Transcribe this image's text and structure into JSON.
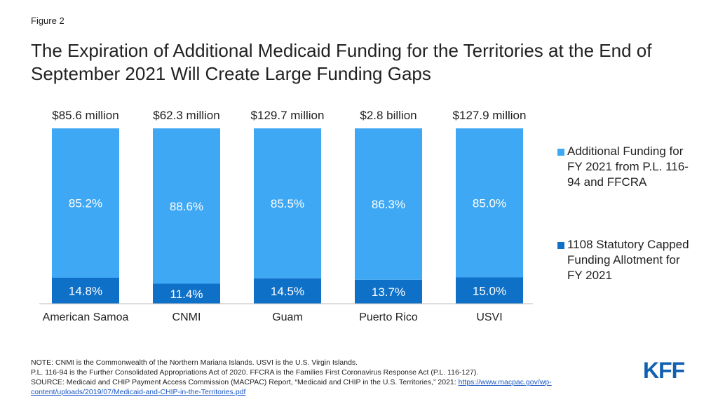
{
  "figure_label": "Figure 2",
  "chart_data": {
    "type": "stacked_bar_100",
    "title": "The Expiration of Additional Medicaid Funding for the Territories at the End of September 2021 Will Create Large Funding Gaps",
    "categories": [
      "American Samoa",
      "CNMI",
      "Guam",
      "Puerto Rico",
      "USVI"
    ],
    "total_labels": [
      "$85.6 million",
      "$62.3 million",
      "$129.7 million",
      "$2.8 billion",
      "$127.9 million"
    ],
    "series": [
      {
        "name": "Additional Funding for FY 2021 from P.L. 116-94 and FFCRA",
        "color": "#3fa8f4",
        "values": [
          85.2,
          88.6,
          85.5,
          86.3,
          85.0
        ],
        "value_labels": [
          "85.2%",
          "88.6%",
          "85.5%",
          "86.3%",
          "85.0%"
        ]
      },
      {
        "name": "1108 Statutory Capped Funding Allotment for FY 2021",
        "color": "#0f70c8",
        "values": [
          14.8,
          11.4,
          14.5,
          13.7,
          15.0
        ],
        "value_labels": [
          "14.8%",
          "11.4%",
          "14.5%",
          "13.7%",
          "15.0%"
        ]
      }
    ]
  },
  "notes": [
    "NOTE: CNMI is the Commonwealth of the Northern Mariana Islands. USVI is the U.S. Virgin Islands.",
    "P.L. 116-94 is the Further Consolidated Appropriations Act of 2020. FFCRA is the Families First Coronavirus Response Act (P.L. 116-127)."
  ],
  "source": "SOURCE: Medicaid and CHIP Payment Access Commission (MACPAC) Report, “Medicaid and CHIP in the U.S. Territories,” 2021: ",
  "source_url": "https://www.macpac.gov/wp-content/uploads/2019/07/Medicaid-and-CHIP-in-the-Territories.pdf",
  "logo": "KFF"
}
